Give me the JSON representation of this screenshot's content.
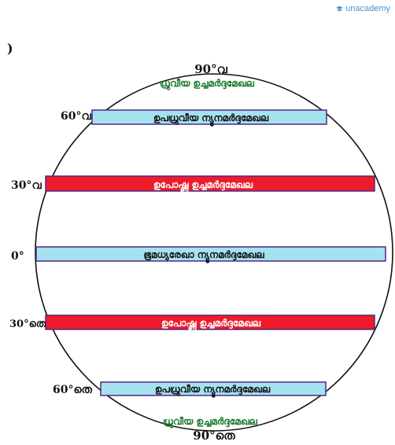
{
  "brand": {
    "name": "unacademy",
    "icon": "graduation-cap-icon",
    "color": "#4a90c8"
  },
  "stray_mark": ")",
  "poles": {
    "north": {
      "degree": "90°വ",
      "label": "ധ്രുവീയ ഉച്ചമർദ്ദമേഖല"
    },
    "south": {
      "degree": "90°തെ",
      "label": "ധ്രുവീയ ഉച്ചമർദ്ദമേഖല"
    }
  },
  "belts": [
    {
      "id": "subpolar-low-north",
      "degree": "60°വ",
      "label": "ഉപധ്രുവീയ ന്യൂനമർദ്ദമേഖല",
      "fill": "#a6e1f0"
    },
    {
      "id": "subtropical-high-north",
      "degree": "30°വ",
      "label": "ഉപോഷ്ണ ഉച്ചമർദ്ദമേഖല",
      "fill": "#ee1c2a"
    },
    {
      "id": "equatorial-low",
      "degree": "0°",
      "label": "ഭൂമധ്യരേഖാ ന്യൂനമർദ്ദമേഖല",
      "fill": "#a6e1f0"
    },
    {
      "id": "subtropical-high-south",
      "degree": "30°തെ",
      "label": "ഉപോഷ്ണ ഉച്ചമർദ്ദമേഖല",
      "fill": "#ee1c2a"
    },
    {
      "id": "subpolar-low-south",
      "degree": "60°തെ",
      "label": "ഉപധ്രുവീയ ന്യൂനമർദ്ദമേഖല",
      "fill": "#a6e1f0"
    }
  ],
  "colors": {
    "polar_label": "#1a7a2a",
    "band_label": "#ffffff",
    "band_border": "#4b2a86",
    "circle": "#111111"
  }
}
